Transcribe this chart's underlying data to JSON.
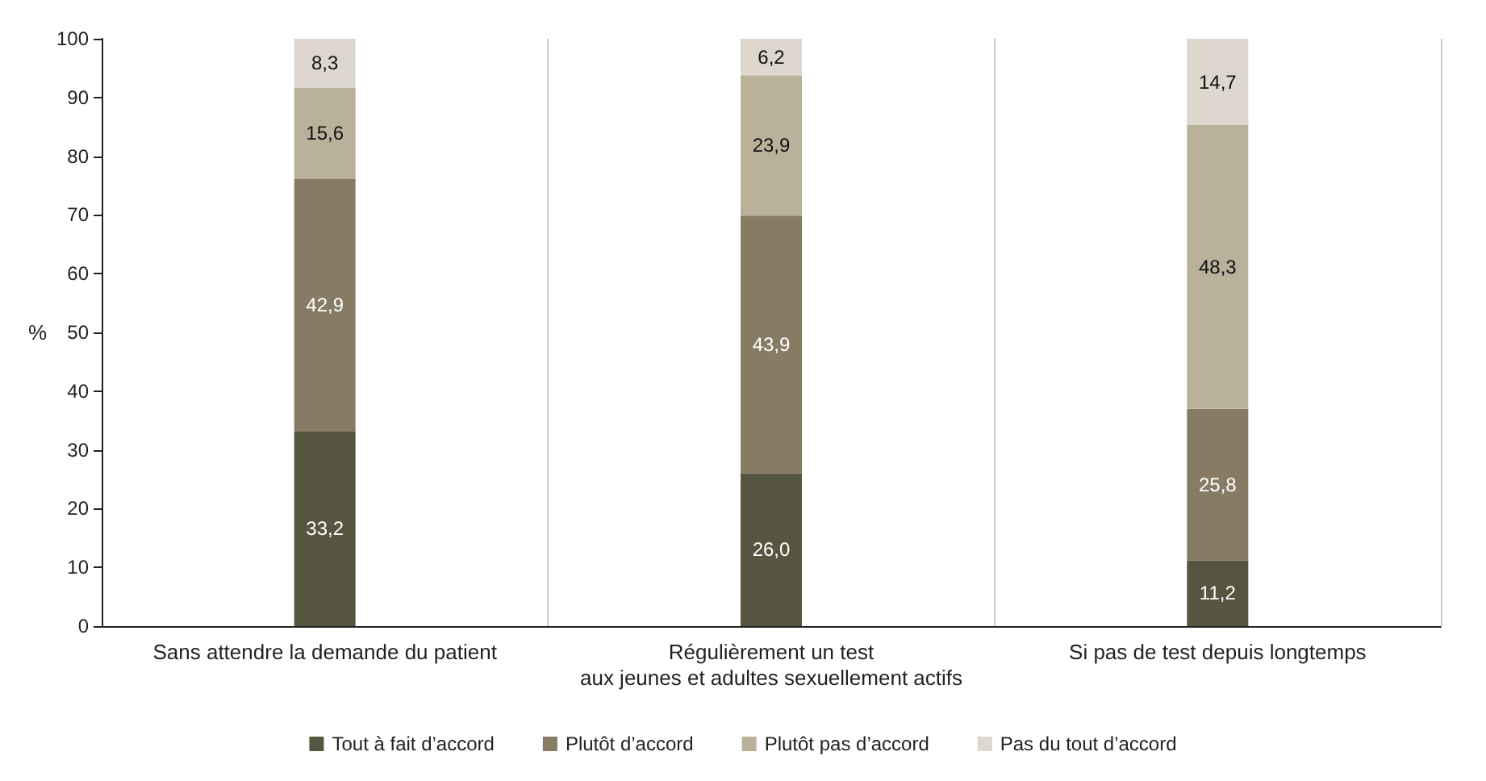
{
  "chart_data": {
    "type": "bar",
    "stacked": true,
    "ylabel": "%",
    "ylim": [
      0,
      100
    ],
    "yticks": [
      0,
      10,
      20,
      30,
      40,
      50,
      60,
      70,
      80,
      90,
      100
    ],
    "grid": "x",
    "legend": "bottom",
    "categories": [
      "Sans attendre la demande du patient",
      "Régulièrement un test\naux jeunes et adultes sexuellement actifs",
      "Si pas de test depuis longtemps"
    ],
    "series": [
      {
        "name": "Tout à fait d’accord",
        "color": "#56553f",
        "values": [
          33.2,
          26.0,
          11.2
        ],
        "value_labels": [
          "33,2",
          "26,0",
          "11,2"
        ]
      },
      {
        "name": "Plutôt d’accord",
        "color": "#877b64",
        "values": [
          42.9,
          43.9,
          25.8
        ],
        "value_labels": [
          "42,9",
          "43,9",
          "25,8"
        ]
      },
      {
        "name": "Plutôt pas d’accord",
        "color": "#bab19b",
        "values": [
          15.6,
          23.9,
          48.3
        ],
        "value_labels": [
          "15,6",
          "23,9",
          "48,3"
        ]
      },
      {
        "name": "Pas du tout d’accord",
        "color": "#ddd7cd",
        "values": [
          8.3,
          6.2,
          14.7
        ],
        "value_labels": [
          "8,3",
          "6,2",
          "14,7"
        ]
      }
    ]
  }
}
